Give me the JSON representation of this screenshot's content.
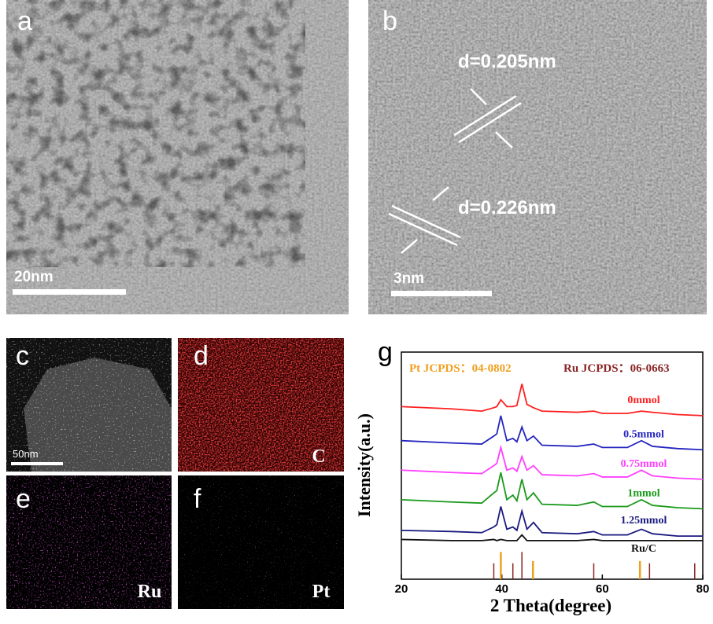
{
  "panels": [
    {
      "label": "a",
      "scale_bar": "20nm"
    },
    {
      "label": "b",
      "scale_bar": "3nm",
      "annotations": [
        "d=0.205nm",
        "d=0.226nm"
      ]
    },
    {
      "label": "c",
      "scale_bar": "50nm"
    },
    {
      "label": "d",
      "element": "C"
    },
    {
      "label": "e",
      "element": "Ru"
    },
    {
      "label": "f",
      "element": "Pt"
    }
  ],
  "chart_data": {
    "type": "line",
    "panel_label": "g",
    "xlabel": "2 Theta(degree)",
    "ylabel": "Intensity(a.u.)",
    "xlim": [
      20,
      80
    ],
    "xticks": [
      20,
      40,
      60,
      80
    ],
    "ylim": [
      0,
      100
    ],
    "x": [
      20,
      30,
      36,
      38.4,
      39,
      39.8,
      41,
      42.2,
      43,
      44,
      45,
      46.3,
      48,
      55,
      58.3,
      60,
      65,
      67.8,
      70,
      75,
      80
    ],
    "series": [
      {
        "name": "0mmol",
        "color": "#ff2020",
        "values": [
          76,
          75,
          74,
          75.5,
          76,
          79,
          76,
          76,
          76.5,
          86,
          77,
          75.5,
          74,
          73.5,
          74,
          73,
          73,
          74,
          73.5,
          72.5,
          72
        ]
      },
      {
        "name": "0.5mmol",
        "color": "#2424c0",
        "values": [
          61,
          60,
          59.5,
          63,
          64,
          72,
          61,
          62,
          60.5,
          67,
          61,
          63,
          59,
          58.5,
          59.5,
          58,
          58,
          61,
          58.5,
          57.5,
          57
        ]
      },
      {
        "name": "0.75mmol",
        "color": "#ff40ff",
        "values": [
          48,
          47,
          46.5,
          50,
          51,
          58,
          48,
          49,
          47.5,
          54,
          48,
          50,
          46,
          45.5,
          46.5,
          45,
          45,
          48,
          45.5,
          44.5,
          44
        ]
      },
      {
        "name": "1mmol",
        "color": "#1a9a1a",
        "values": [
          35,
          34,
          33.5,
          38,
          39,
          47,
          35,
          37,
          34.5,
          44,
          35,
          38,
          33,
          32.5,
          34,
          32,
          32,
          35,
          32.5,
          31.5,
          31
        ]
      },
      {
        "name": "1.25mmol",
        "color": "#1a1a80",
        "values": [
          21.5,
          21,
          20.5,
          23,
          24,
          32,
          22,
          23,
          21.5,
          30,
          22,
          25,
          20.5,
          20,
          21,
          19.5,
          19.5,
          22,
          20,
          19,
          19
        ]
      },
      {
        "name": "Ru/C",
        "color": "#111111",
        "values": [
          17.5,
          17,
          17,
          17.5,
          17,
          17.5,
          17,
          17,
          17,
          19.5,
          17,
          17,
          17,
          17,
          17.5,
          17,
          17,
          17,
          17,
          17,
          17
        ]
      }
    ],
    "references": [
      {
        "name": "Pt  JCPDS：04-0802",
        "color": "#f0a020",
        "x": [
          39.8,
          46.2,
          67.5
        ],
        "values": [
          12,
          8,
          8
        ]
      },
      {
        "name": "Ru JCPDS：06-0663",
        "color": "#8b2525",
        "x": [
          38.4,
          42.2,
          44.0,
          58.3,
          69.4,
          78.4
        ],
        "values": [
          7,
          7,
          12,
          7,
          7,
          7
        ]
      }
    ]
  }
}
